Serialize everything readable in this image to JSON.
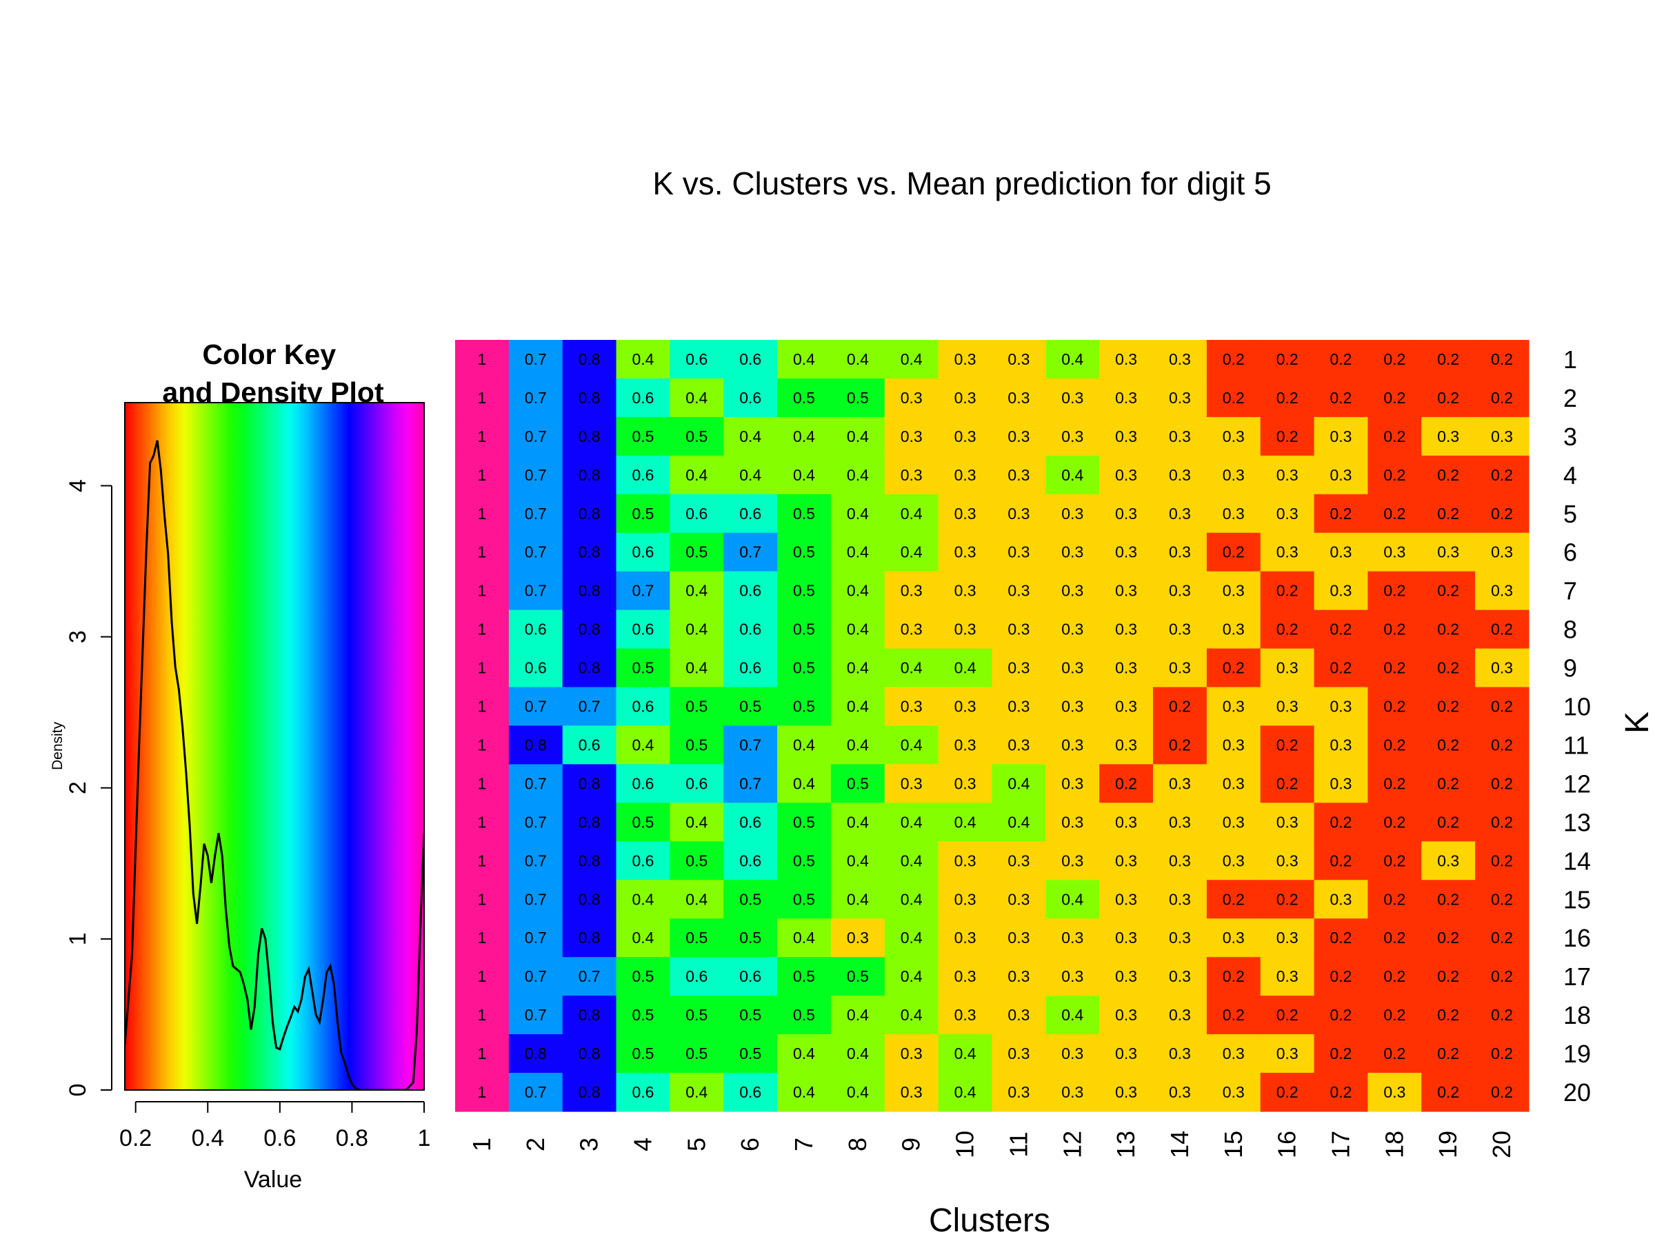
{
  "chart_data": [
    {
      "type": "heatmap",
      "title": "K vs. Clusters vs. Mean prediction for digit 5",
      "xlabel": "Clusters",
      "ylabel": "K",
      "x": [
        "1",
        "2",
        "3",
        "4",
        "5",
        "6",
        "7",
        "8",
        "9",
        "10",
        "11",
        "12",
        "13",
        "14",
        "15",
        "16",
        "17",
        "18",
        "19",
        "20"
      ],
      "y": [
        "1",
        "2",
        "3",
        "4",
        "5",
        "6",
        "7",
        "8",
        "9",
        "10",
        "11",
        "12",
        "13",
        "14",
        "15",
        "16",
        "17",
        "18",
        "19",
        "20"
      ],
      "values": [
        [
          1,
          0.7,
          0.8,
          0.4,
          0.6,
          0.6,
          0.4,
          0.4,
          0.4,
          0.3,
          0.3,
          0.4,
          0.3,
          0.3,
          0.2,
          0.2,
          0.2,
          0.2,
          0.2,
          0.2
        ],
        [
          1,
          0.7,
          0.8,
          0.6,
          0.4,
          0.6,
          0.5,
          0.5,
          0.3,
          0.3,
          0.3,
          0.3,
          0.3,
          0.3,
          0.2,
          0.2,
          0.2,
          0.2,
          0.2,
          0.2
        ],
        [
          1,
          0.7,
          0.8,
          0.5,
          0.5,
          0.4,
          0.4,
          0.4,
          0.3,
          0.3,
          0.3,
          0.3,
          0.3,
          0.3,
          0.3,
          0.2,
          0.3,
          0.2,
          0.3,
          0.3
        ],
        [
          1,
          0.7,
          0.8,
          0.6,
          0.4,
          0.4,
          0.4,
          0.4,
          0.3,
          0.3,
          0.3,
          0.4,
          0.3,
          0.3,
          0.3,
          0.3,
          0.3,
          0.2,
          0.2,
          0.2
        ],
        [
          1,
          0.7,
          0.8,
          0.5,
          0.6,
          0.6,
          0.5,
          0.4,
          0.4,
          0.3,
          0.3,
          0.3,
          0.3,
          0.3,
          0.3,
          0.3,
          0.2,
          0.2,
          0.2,
          0.2
        ],
        [
          1,
          0.7,
          0.8,
          0.6,
          0.5,
          0.7,
          0.5,
          0.4,
          0.4,
          0.3,
          0.3,
          0.3,
          0.3,
          0.3,
          0.2,
          0.3,
          0.3,
          0.3,
          0.3,
          0.3
        ],
        [
          1,
          0.7,
          0.8,
          0.7,
          0.4,
          0.6,
          0.5,
          0.4,
          0.3,
          0.3,
          0.3,
          0.3,
          0.3,
          0.3,
          0.3,
          0.2,
          0.3,
          0.2,
          0.2,
          0.3
        ],
        [
          1,
          0.6,
          0.8,
          0.6,
          0.4,
          0.6,
          0.5,
          0.4,
          0.3,
          0.3,
          0.3,
          0.3,
          0.3,
          0.3,
          0.3,
          0.2,
          0.2,
          0.2,
          0.2,
          0.2
        ],
        [
          1,
          0.6,
          0.8,
          0.5,
          0.4,
          0.6,
          0.5,
          0.4,
          0.4,
          0.4,
          0.3,
          0.3,
          0.3,
          0.3,
          0.2,
          0.3,
          0.2,
          0.2,
          0.2,
          0.3
        ],
        [
          1,
          0.7,
          0.7,
          0.6,
          0.5,
          0.5,
          0.5,
          0.4,
          0.3,
          0.3,
          0.3,
          0.3,
          0.3,
          0.2,
          0.3,
          0.3,
          0.3,
          0.2,
          0.2,
          0.2
        ],
        [
          1,
          0.8,
          0.6,
          0.4,
          0.5,
          0.7,
          0.4,
          0.4,
          0.4,
          0.3,
          0.3,
          0.3,
          0.3,
          0.2,
          0.3,
          0.2,
          0.3,
          0.2,
          0.2,
          0.2
        ],
        [
          1,
          0.7,
          0.8,
          0.6,
          0.6,
          0.7,
          0.4,
          0.5,
          0.3,
          0.3,
          0.4,
          0.3,
          0.2,
          0.3,
          0.3,
          0.2,
          0.3,
          0.2,
          0.2,
          0.2
        ],
        [
          1,
          0.7,
          0.8,
          0.5,
          0.4,
          0.6,
          0.5,
          0.4,
          0.4,
          0.4,
          0.4,
          0.3,
          0.3,
          0.3,
          0.3,
          0.3,
          0.2,
          0.2,
          0.2,
          0.2
        ],
        [
          1,
          0.7,
          0.8,
          0.6,
          0.5,
          0.6,
          0.5,
          0.4,
          0.4,
          0.3,
          0.3,
          0.3,
          0.3,
          0.3,
          0.3,
          0.3,
          0.2,
          0.2,
          0.3,
          0.2
        ],
        [
          1,
          0.7,
          0.8,
          0.4,
          0.4,
          0.5,
          0.5,
          0.4,
          0.4,
          0.3,
          0.3,
          0.4,
          0.3,
          0.3,
          0.2,
          0.2,
          0.3,
          0.2,
          0.2,
          0.2
        ],
        [
          1,
          0.7,
          0.8,
          0.4,
          0.5,
          0.5,
          0.4,
          0.3,
          0.4,
          0.3,
          0.3,
          0.3,
          0.3,
          0.3,
          0.3,
          0.3,
          0.2,
          0.2,
          0.2,
          0.2
        ],
        [
          1,
          0.7,
          0.7,
          0.5,
          0.6,
          0.6,
          0.5,
          0.5,
          0.4,
          0.3,
          0.3,
          0.3,
          0.3,
          0.3,
          0.2,
          0.3,
          0.2,
          0.2,
          0.2,
          0.2
        ],
        [
          1,
          0.7,
          0.8,
          0.5,
          0.5,
          0.5,
          0.5,
          0.4,
          0.4,
          0.3,
          0.3,
          0.4,
          0.3,
          0.3,
          0.2,
          0.2,
          0.2,
          0.2,
          0.2,
          0.2
        ],
        [
          1,
          0.8,
          0.8,
          0.5,
          0.5,
          0.5,
          0.4,
          0.4,
          0.3,
          0.4,
          0.3,
          0.3,
          0.3,
          0.3,
          0.3,
          0.3,
          0.2,
          0.2,
          0.2,
          0.2
        ],
        [
          1,
          0.7,
          0.8,
          0.6,
          0.4,
          0.6,
          0.4,
          0.4,
          0.3,
          0.4,
          0.3,
          0.3,
          0.3,
          0.3,
          0.3,
          0.2,
          0.2,
          0.3,
          0.2,
          0.2
        ]
      ],
      "colorscale": "rainbow",
      "value_range": [
        0.17,
        1.0
      ]
    },
    {
      "type": "line",
      "title": "Color Key\nand Density Plot",
      "xlabel": "Value",
      "ylabel": "Density",
      "x_ticks": [
        "0.2",
        "0.4",
        "0.6",
        "0.8",
        "1"
      ],
      "y_ticks": [
        "0",
        "1",
        "2",
        "3",
        "4"
      ],
      "xlim": [
        0.17,
        1.0
      ],
      "ylim": [
        0,
        4.55
      ],
      "x": [
        0.17,
        0.19,
        0.21,
        0.23,
        0.24,
        0.25,
        0.26,
        0.27,
        0.28,
        0.29,
        0.3,
        0.31,
        0.32,
        0.33,
        0.34,
        0.35,
        0.36,
        0.37,
        0.38,
        0.39,
        0.4,
        0.41,
        0.42,
        0.43,
        0.44,
        0.45,
        0.46,
        0.47,
        0.48,
        0.49,
        0.5,
        0.51,
        0.52,
        0.53,
        0.54,
        0.55,
        0.56,
        0.57,
        0.58,
        0.59,
        0.6,
        0.61,
        0.62,
        0.63,
        0.64,
        0.65,
        0.66,
        0.67,
        0.68,
        0.69,
        0.7,
        0.71,
        0.72,
        0.73,
        0.74,
        0.75,
        0.76,
        0.77,
        0.78,
        0.79,
        0.8,
        0.81,
        0.82,
        0.83,
        0.84,
        0.85,
        0.9,
        0.95,
        0.97,
        0.98,
        0.99,
        1.0
      ],
      "values": [
        0.3,
        0.9,
        2.3,
        3.6,
        4.15,
        4.2,
        4.3,
        4.1,
        3.8,
        3.55,
        3.1,
        2.8,
        2.65,
        2.4,
        2.1,
        1.75,
        1.3,
        1.1,
        1.35,
        1.63,
        1.55,
        1.37,
        1.55,
        1.7,
        1.55,
        1.2,
        0.95,
        0.82,
        0.8,
        0.78,
        0.7,
        0.6,
        0.4,
        0.55,
        0.9,
        1.07,
        1.0,
        0.75,
        0.45,
        0.28,
        0.27,
        0.35,
        0.42,
        0.48,
        0.55,
        0.52,
        0.6,
        0.75,
        0.8,
        0.65,
        0.5,
        0.45,
        0.6,
        0.78,
        0.82,
        0.7,
        0.45,
        0.25,
        0.18,
        0.1,
        0.04,
        0.01,
        0.0,
        0.0,
        0.0,
        0.0,
        0.0,
        0.0,
        0.05,
        0.4,
        1.1,
        1.7
      ]
    }
  ]
}
